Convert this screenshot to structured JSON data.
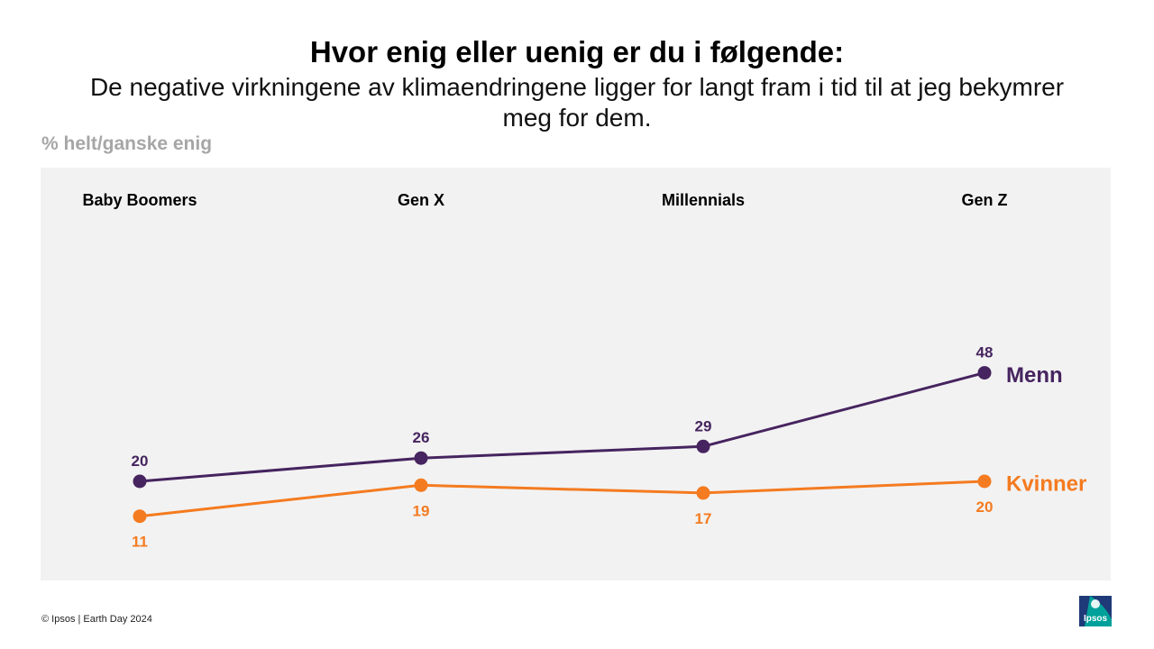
{
  "header": {
    "title": "Hvor enig eller uenig er du i følgende:",
    "subtitle": "De negative virkningene av klimaendringene ligger for langt fram i tid til at jeg bekymrer meg for dem.",
    "unit_label": "% helt/ganske enig"
  },
  "chart_data": {
    "type": "line",
    "categories": [
      "Baby Boomers",
      "Gen X",
      "Millennials",
      "Gen Z"
    ],
    "series": [
      {
        "name": "Menn",
        "values": [
          20,
          26,
          29,
          48
        ],
        "color": "#46245f",
        "label_position": "above"
      },
      {
        "name": "Kvinner",
        "values": [
          11,
          19,
          17,
          20
        ],
        "color": "#f47b20",
        "label_position": "below"
      }
    ],
    "legend": "inline-right",
    "grid": false,
    "background": "#f2f2f2"
  },
  "footer": {
    "copyright": "© Ipsos | Earth Day 2024",
    "logo_text": "Ipsos",
    "logo_color": "#00a19a"
  }
}
